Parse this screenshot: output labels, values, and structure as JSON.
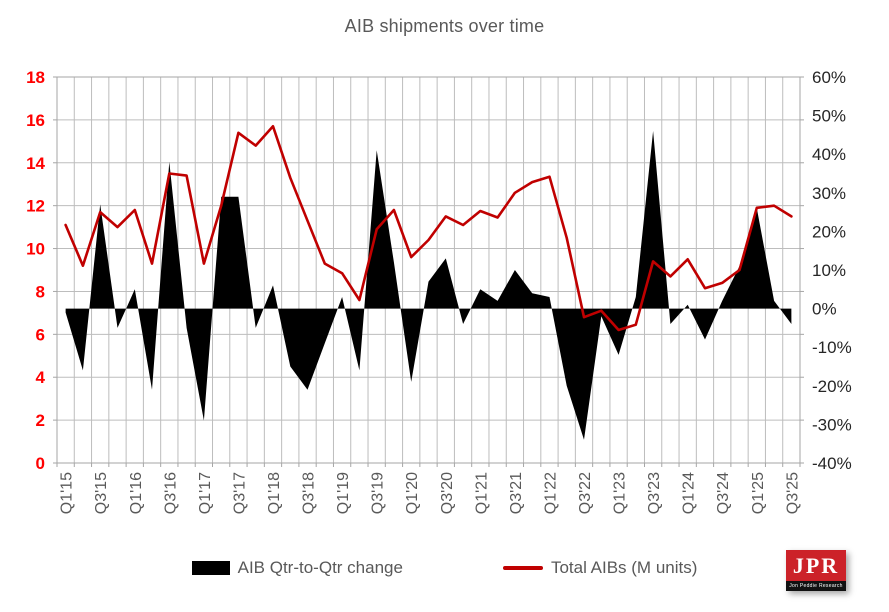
{
  "title": "AIB shipments over time",
  "legend": {
    "items": [
      {
        "label": "AIB Qtr-to-Qtr change",
        "swatch": "black-area"
      },
      {
        "label": "Total AIBs (M units)",
        "swatch": "red-line"
      }
    ]
  },
  "logo": {
    "text": "JPR",
    "subtext": "Jon Peddie Research"
  },
  "colors": {
    "line_series": "#C00000",
    "area_series": "#000000",
    "left_axis_labels": "#FF0000",
    "right_axis_labels": "#262626",
    "grid": "#BDBDBD",
    "plot_border": "#A6A6A6",
    "title_text": "#595959",
    "x_labels": "#595959"
  },
  "chart_data": {
    "type": "combo",
    "title": "AIB shipments over time",
    "grid": true,
    "legend_position": "bottom",
    "categories": [
      "Q1'15",
      "Q2'15",
      "Q3'15",
      "Q4'15",
      "Q1'16",
      "Q2'16",
      "Q3'16",
      "Q4'16",
      "Q1'17",
      "Q2'17",
      "Q3'17",
      "Q4'17",
      "Q1'18",
      "Q2'18",
      "Q3'18",
      "Q4'18",
      "Q1'19",
      "Q2'19",
      "Q3'19",
      "Q4'19",
      "Q1'20",
      "Q2'20",
      "Q3'20",
      "Q4'20",
      "Q1'21",
      "Q2'21",
      "Q3'21",
      "Q4'21",
      "Q1'22",
      "Q2'22",
      "Q3'22",
      "Q4'22",
      "Q1'23",
      "Q2'23",
      "Q3'23",
      "Q4'23",
      "Q1'24",
      "Q2'24",
      "Q3'24",
      "Q4'24",
      "Q1'25",
      "Q2'25",
      "Q3'25"
    ],
    "x_labels_shown_every": 2,
    "left_axis": {
      "min": 0,
      "max": 18,
      "step": 2,
      "applies_to": "Total AIBs (M units)"
    },
    "right_axis": {
      "min": -40,
      "max": 60,
      "step": 10,
      "unit": "%",
      "applies_to": "AIB Qtr-to-Qtr change"
    },
    "series": [
      {
        "name": "AIB Qtr-to-Qtr change",
        "type": "area",
        "axis": "right",
        "unit": "%",
        "color": "#000000",
        "values": [
          -1,
          -16,
          27,
          -5,
          5,
          -21,
          38,
          -5,
          -29,
          29,
          29,
          -5,
          6,
          -15,
          -21,
          -9,
          3,
          -16,
          41,
          12,
          -19,
          7,
          13,
          -4,
          5,
          2,
          10,
          4,
          3,
          -20,
          -34,
          -2,
          -12,
          3,
          46,
          -4,
          1,
          -8,
          2,
          11,
          26,
          2,
          -4
        ]
      },
      {
        "name": "Total AIBs (M units)",
        "type": "line",
        "axis": "left",
        "unit": "M units",
        "color": "#C00000",
        "values": [
          11.1,
          9.2,
          11.7,
          11.0,
          11.8,
          9.3,
          13.5,
          13.4,
          9.3,
          12.0,
          15.4,
          14.8,
          15.7,
          13.3,
          11.3,
          9.3,
          8.85,
          7.6,
          10.9,
          11.8,
          9.6,
          10.4,
          11.5,
          11.1,
          11.75,
          11.45,
          12.6,
          13.1,
          13.35,
          10.5,
          6.8,
          7.1,
          6.2,
          6.45,
          9.4,
          8.7,
          9.5,
          8.15,
          8.4,
          9.0,
          11.9,
          12.0,
          11.5
        ]
      }
    ]
  }
}
